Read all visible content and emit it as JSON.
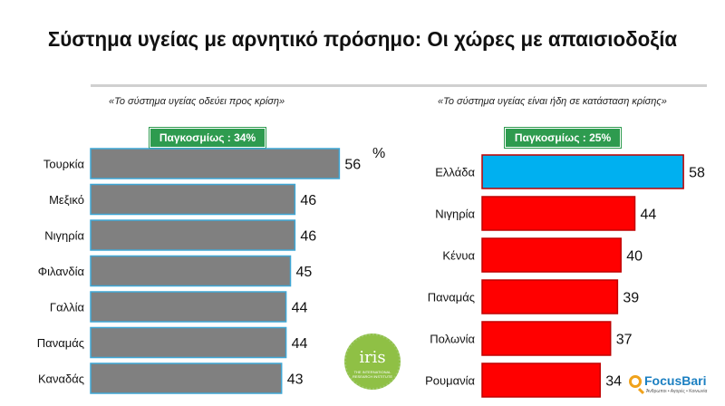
{
  "title": "Σύστημα υγείας με αρνητικό πρόσημο: Οι χώρες με απαισιοδοξία",
  "percent_symbol": "%",
  "chart_data": [
    {
      "type": "bar",
      "orientation": "horizontal",
      "title": "«Το σύστημα υγείας οδεύει προς κρίση»",
      "global_label": "Παγκοσμίως : 34%",
      "categories": [
        "Τουρκία",
        "Μεξικό",
        "Νιγηρία",
        "Φιλανδία",
        "Γαλλία",
        "Παναμάς",
        "Καναδάς"
      ],
      "values": [
        56,
        46,
        46,
        45,
        44,
        44,
        43
      ],
      "bar_colors": [
        "#808080",
        "#808080",
        "#808080",
        "#808080",
        "#808080",
        "#808080",
        "#808080"
      ],
      "border_color": "#3fa7d6",
      "value_unit": "%",
      "grid": false,
      "legend": "none"
    },
    {
      "type": "bar",
      "orientation": "horizontal",
      "title": "«Το σύστημα υγείας είναι ήδη σε κατάσταση κρίσης»",
      "global_label": "Παγκοσμίως : 25%",
      "categories": [
        "Ελλάδα",
        "Νιγηρία",
        "Κένυα",
        "Παναμάς",
        "Πολωνία",
        "Ρουμανία"
      ],
      "values": [
        58,
        44,
        40,
        39,
        37,
        34
      ],
      "bar_colors": [
        "#00b0f0",
        "#ff0000",
        "#ff0000",
        "#ff0000",
        "#ff0000",
        "#ff0000"
      ],
      "border_color": "#c00000",
      "value_unit": "%",
      "grid": false,
      "legend": "none"
    }
  ],
  "logos": {
    "iris": {
      "word": "iris",
      "subtext": "THE INTERNATIONAL RESEARCH INSTITUTE",
      "color": "#8fc045"
    },
    "focus": {
      "name": "FocusBari",
      "tagline": "Άνθρωποι • Αγορές • Κοινωνία"
    }
  }
}
